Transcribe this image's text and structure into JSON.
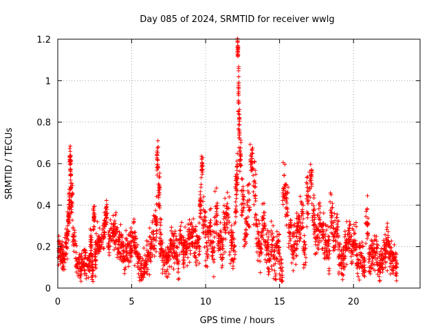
{
  "chart_data": {
    "type": "scatter",
    "title": "Day 085 of 2024, SRMTID for receiver wwlg",
    "xlabel": "GPS time / hours",
    "ylabel": "SRMTID / TECUs",
    "xlim": [
      0,
      24.5
    ],
    "ylim": [
      0,
      1.2
    ],
    "xticks": [
      0,
      5,
      10,
      15,
      20
    ],
    "xtick_labels": [
      "0",
      "5",
      "10",
      "15",
      "20"
    ],
    "yticks": [
      0,
      0.2,
      0.4,
      0.6,
      0.8,
      1.0,
      1.2
    ],
    "ytick_labels": [
      "0",
      "0.2",
      "0.4",
      "0.6",
      "0.8",
      "1",
      "1.2"
    ],
    "grid": true,
    "marker": "+",
    "color": "#ff0000",
    "series": [
      {
        "name": "SRMTID",
        "x": [
          0.05,
          0.2,
          0.35,
          0.5,
          0.65,
          0.75,
          0.8,
          0.85,
          0.9,
          1.0,
          1.2,
          1.4,
          1.6,
          1.8,
          2.0,
          2.2,
          2.3,
          2.4,
          2.5,
          2.6,
          2.8,
          3.0,
          3.2,
          3.4,
          3.6,
          3.8,
          4.0,
          4.2,
          4.4,
          4.6,
          4.8,
          5.0,
          5.2,
          5.4,
          5.6,
          5.8,
          6.0,
          6.2,
          6.4,
          6.6,
          6.7,
          6.8,
          6.9,
          7.0,
          7.2,
          7.4,
          7.6,
          7.8,
          8.0,
          8.2,
          8.4,
          8.6,
          8.8,
          9.0,
          9.2,
          9.4,
          9.6,
          9.7,
          9.8,
          10.0,
          10.2,
          10.4,
          10.6,
          10.8,
          11.0,
          11.2,
          11.4,
          11.6,
          11.8,
          12.0,
          12.1,
          12.15,
          12.2,
          12.25,
          12.3,
          12.4,
          12.6,
          12.8,
          13.0,
          13.2,
          13.4,
          13.6,
          13.8,
          14.0,
          14.2,
          14.4,
          14.6,
          14.8,
          15.0,
          15.2,
          15.4,
          15.6,
          15.8,
          16.0,
          16.2,
          16.4,
          16.6,
          16.8,
          17.0,
          17.2,
          17.4,
          17.6,
          17.8,
          18.0,
          18.2,
          18.4,
          18.6,
          18.8,
          19.0,
          19.2,
          19.4,
          19.6,
          19.8,
          20.0,
          20.2,
          20.4,
          20.6,
          20.8,
          21.0,
          21.2,
          21.4,
          21.6,
          21.8,
          22.0,
          22.2,
          22.4,
          22.6,
          22.8
        ],
        "y": [
          0.19,
          0.16,
          0.14,
          0.22,
          0.33,
          0.38,
          0.63,
          0.55,
          0.41,
          0.25,
          0.13,
          0.1,
          0.12,
          0.11,
          0.13,
          0.2,
          0.09,
          0.34,
          0.15,
          0.22,
          0.23,
          0.27,
          0.35,
          0.24,
          0.28,
          0.26,
          0.21,
          0.2,
          0.15,
          0.18,
          0.17,
          0.24,
          0.19,
          0.12,
          0.08,
          0.11,
          0.15,
          0.2,
          0.26,
          0.31,
          0.62,
          0.47,
          0.24,
          0.16,
          0.12,
          0.15,
          0.2,
          0.17,
          0.14,
          0.22,
          0.18,
          0.19,
          0.24,
          0.25,
          0.19,
          0.22,
          0.42,
          0.59,
          0.3,
          0.22,
          0.28,
          0.19,
          0.35,
          0.24,
          0.19,
          0.3,
          0.36,
          0.22,
          0.18,
          0.45,
          0.55,
          1.15,
          0.93,
          0.79,
          0.62,
          0.44,
          0.26,
          0.38,
          0.6,
          0.49,
          0.24,
          0.2,
          0.3,
          0.22,
          0.16,
          0.21,
          0.14,
          0.2,
          0.08,
          0.5,
          0.41,
          0.27,
          0.21,
          0.25,
          0.3,
          0.37,
          0.18,
          0.43,
          0.52,
          0.34,
          0.24,
          0.31,
          0.27,
          0.21,
          0.18,
          0.35,
          0.23,
          0.28,
          0.15,
          0.14,
          0.2,
          0.25,
          0.18,
          0.22,
          0.12,
          0.16,
          0.11,
          0.31,
          0.14,
          0.19,
          0.17,
          0.11,
          0.12,
          0.18,
          0.21,
          0.15,
          0.14,
          0.1
        ],
        "spread": [
          0.06,
          0.06,
          0.06,
          0.07,
          0.08,
          0.09,
          0.05,
          0.06,
          0.06,
          0.06,
          0.06,
          0.06,
          0.06,
          0.06,
          0.06,
          0.06,
          0.05,
          0.05,
          0.06,
          0.06,
          0.06,
          0.07,
          0.05,
          0.06,
          0.06,
          0.06,
          0.07,
          0.07,
          0.07,
          0.07,
          0.07,
          0.08,
          0.07,
          0.06,
          0.05,
          0.05,
          0.06,
          0.07,
          0.08,
          0.1,
          0.06,
          0.07,
          0.06,
          0.06,
          0.06,
          0.06,
          0.07,
          0.07,
          0.07,
          0.07,
          0.07,
          0.07,
          0.08,
          0.08,
          0.08,
          0.08,
          0.08,
          0.05,
          0.09,
          0.08,
          0.08,
          0.08,
          0.08,
          0.08,
          0.08,
          0.08,
          0.08,
          0.08,
          0.08,
          0.1,
          0.06,
          0.04,
          0.12,
          0.08,
          0.08,
          0.08,
          0.08,
          0.09,
          0.06,
          0.1,
          0.08,
          0.08,
          0.08,
          0.08,
          0.08,
          0.08,
          0.07,
          0.08,
          0.06,
          0.08,
          0.09,
          0.08,
          0.08,
          0.08,
          0.08,
          0.09,
          0.08,
          0.1,
          0.06,
          0.08,
          0.08,
          0.08,
          0.08,
          0.08,
          0.08,
          0.08,
          0.08,
          0.08,
          0.07,
          0.07,
          0.07,
          0.07,
          0.07,
          0.07,
          0.06,
          0.06,
          0.06,
          0.08,
          0.06,
          0.06,
          0.06,
          0.06,
          0.05,
          0.06,
          0.07,
          0.07,
          0.06,
          0.06
        ]
      }
    ]
  }
}
